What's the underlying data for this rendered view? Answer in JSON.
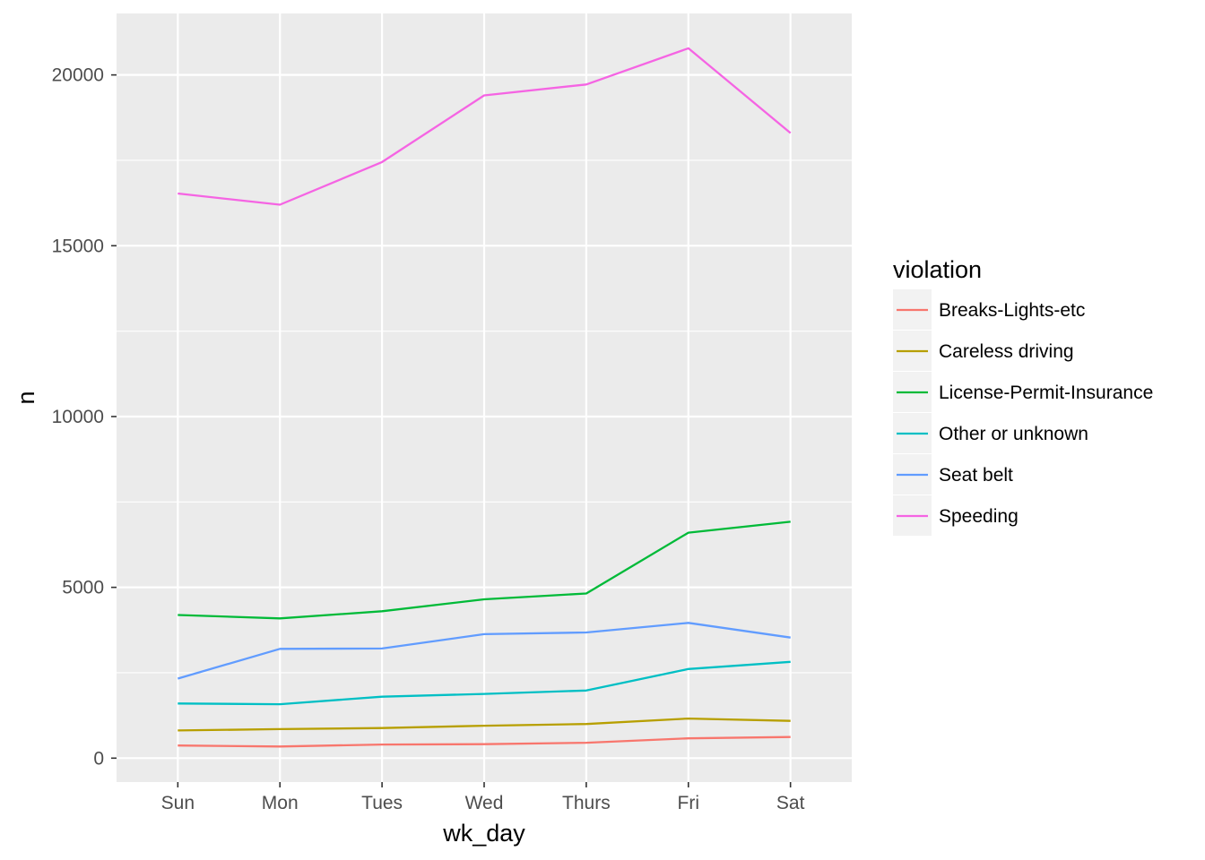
{
  "chart_data": {
    "type": "line",
    "title": "",
    "xlabel": "wk_day",
    "ylabel": "n",
    "categories": [
      "Sun",
      "Mon",
      "Tues",
      "Wed",
      "Thurs",
      "Fri",
      "Sat"
    ],
    "ylim": [
      -700,
      21800
    ],
    "yticks": [
      0,
      5000,
      10000,
      15000,
      20000
    ],
    "ytick_labels": [
      "0",
      "5000",
      "10000",
      "15000",
      "20000"
    ],
    "yminor": [
      2500,
      7500,
      12500,
      17500
    ],
    "grid": true,
    "legend": {
      "title": "violation",
      "placement": "right"
    },
    "series": [
      {
        "name": "Breaks-Lights-etc",
        "color": "#F8766D",
        "values": [
          370,
          340,
          400,
          410,
          450,
          580,
          620
        ]
      },
      {
        "name": "Careless driving",
        "color": "#B79F00",
        "values": [
          810,
          850,
          880,
          950,
          1000,
          1160,
          1090
        ]
      },
      {
        "name": "License-Permit-Insurance",
        "color": "#00BA38",
        "values": [
          4190,
          4090,
          4300,
          4650,
          4820,
          6600,
          6920
        ]
      },
      {
        "name": "Other or unknown",
        "color": "#00BFC4",
        "values": [
          1600,
          1580,
          1800,
          1880,
          1980,
          2610,
          2820
        ]
      },
      {
        "name": "Seat belt",
        "color": "#619CFF",
        "values": [
          2330,
          3200,
          3210,
          3630,
          3680,
          3960,
          3530
        ]
      },
      {
        "name": "Speeding",
        "color": "#F564E3",
        "values": [
          16530,
          16200,
          17450,
          19400,
          19720,
          20780,
          18300
        ]
      }
    ]
  }
}
